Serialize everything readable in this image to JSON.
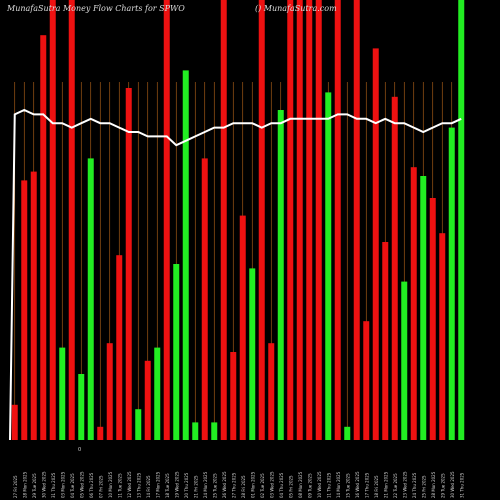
{
  "header": {
    "title": "MunafaSutra  Money Flow  Charts for SPWO",
    "site": "() MunafaSutra.com"
  },
  "colors": {
    "background": "#000000",
    "up": "#22ee22",
    "down": "#ee1111",
    "gridline": "#b8651b",
    "line": "#ffffff",
    "text": "#dcdcdc"
  },
  "chart_data": {
    "type": "bar",
    "title": "MunafaSutra  Money Flow  Charts for SPWO",
    "ylim": [
      0,
      100
    ],
    "x_marker_label": "0",
    "categories": [
      "27 Fri 2025",
      "28 Mon 2025",
      "29 Tue 2025",
      "30 Wed 2025",
      "31 Thu 2025",
      "03 Mon 2025",
      "04 Tue 2025",
      "05 Wed 2025",
      "06 Thu 2025",
      "07 Fri 2025",
      "10 Mon 2025",
      "11 Tue 2025",
      "12 Wed 2025",
      "13 Thu 2025",
      "14 Fri 2025",
      "17 Mon 2025",
      "18 Tue 2025",
      "19 Wed 2025",
      "20 Thu 2025",
      "21 Fri 2025",
      "24 Mon 2025",
      "25 Tue 2025",
      "26 Wed 2025",
      "27 Thu 2025",
      "28 Fri 2025",
      "01 Mon 2025",
      "02 Tue 2025",
      "03 Wed 2025",
      "04 Thu 2025",
      "05 Fri 2025",
      "08 Mon 2025",
      "09 Tue 2025",
      "10 Wed 2025",
      "11 Thu 2025",
      "14 Mon 2025",
      "15 Tue 2025",
      "16 Wed 2025",
      "17 Thu 2025",
      "18 Fri 2025",
      "21 Mon 2025",
      "22 Tue 2025",
      "23 Wed 2025",
      "24 Thu 2025",
      "25 Fri 2025",
      "28 Mon 2025",
      "29 Tue 2025",
      "30 Wed 2025",
      "31 Thu 2025"
    ],
    "series": [
      {
        "values": [
          8,
          59,
          61,
          92,
          100,
          21,
          100,
          15,
          64,
          3,
          22,
          42,
          80,
          7,
          18,
          21,
          100,
          40,
          84,
          4,
          64,
          4,
          100,
          20,
          51,
          39,
          100,
          22,
          75,
          100,
          100,
          100,
          100,
          79,
          100,
          3,
          100,
          27,
          89,
          45,
          78,
          36,
          62,
          60,
          55,
          47,
          71,
          100
        ],
        "directions": [
          "down",
          "down",
          "down",
          "down",
          "down",
          "up",
          "down",
          "up",
          "up",
          "down",
          "down",
          "down",
          "down",
          "up",
          "down",
          "up",
          "down",
          "up",
          "up",
          "up",
          "down",
          "up",
          "down",
          "down",
          "down",
          "up",
          "down",
          "down",
          "up",
          "down",
          "down",
          "down",
          "down",
          "up",
          "down",
          "up",
          "down",
          "down",
          "down",
          "down",
          "down",
          "up",
          "down",
          "up",
          "down",
          "down",
          "up",
          "up"
        ]
      },
      {
        "values": [
          74,
          75,
          74,
          74,
          72,
          72,
          71,
          72,
          73,
          72,
          72,
          71,
          70,
          70,
          69,
          69,
          69,
          67,
          68,
          69,
          70,
          71,
          71,
          72,
          72,
          72,
          71,
          72,
          72,
          73,
          73,
          73,
          73,
          73,
          74,
          74,
          73,
          73,
          72,
          73,
          72,
          72,
          71,
          70,
          71,
          72,
          72,
          73
        ]
      }
    ]
  }
}
